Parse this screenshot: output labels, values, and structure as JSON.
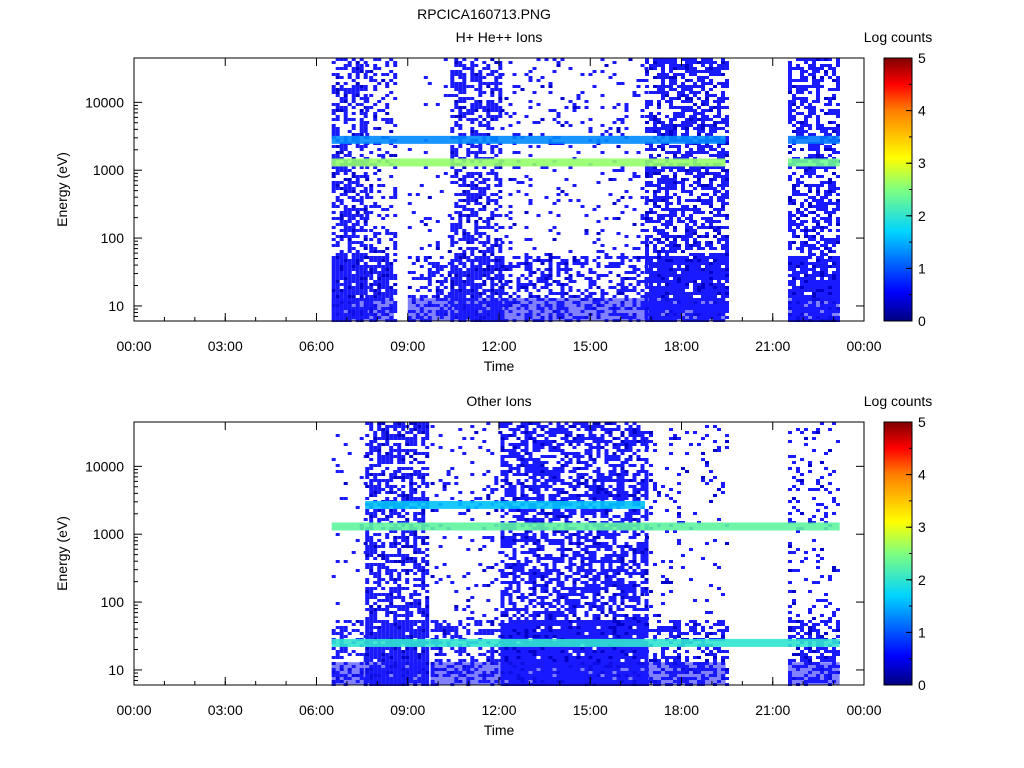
{
  "page": {
    "title": "RPCICA160713.PNG"
  },
  "colorbar": {
    "label": "Log counts",
    "min": 0,
    "max": 5,
    "ticks": [
      "0",
      "1",
      "2",
      "3",
      "4",
      "5"
    ]
  },
  "x_ticks": [
    "00:00",
    "03:00",
    "06:00",
    "09:00",
    "12:00",
    "15:00",
    "18:00",
    "21:00",
    "00:00"
  ],
  "y_ticks": [
    "10",
    "100",
    "1000",
    "10000"
  ],
  "chart_data": [
    {
      "type": "heatmap",
      "title": "H+ He++ Ions",
      "xlabel": "Time",
      "ylabel": "Energy (eV)",
      "x_range_hours": [
        0,
        24
      ],
      "y_range_eV": [
        6,
        45000
      ],
      "y_scale": "log",
      "colorbar_label": "Log counts",
      "colorbar_range": [
        0,
        5
      ],
      "data_intervals_hours": [
        [
          6.5,
          7.6
        ],
        [
          7.6,
          8.55
        ],
        [
          9.0,
          10.4
        ],
        [
          10.4,
          12.05
        ],
        [
          12.05,
          16.8
        ],
        [
          16.8,
          19.45
        ],
        [
          21.5,
          23.2
        ]
      ],
      "bands": [
        {
          "energy_eV": 1300,
          "log_counts": 2.6,
          "from_hours": 6.5,
          "to_hours": 19.45
        },
        {
          "energy_eV": 2800,
          "log_counts": 1.3,
          "from_hours": 6.5,
          "to_hours": 19.45
        },
        {
          "energy_eV": 1300,
          "log_counts": 2.4,
          "from_hours": 21.5,
          "to_hours": 23.2
        },
        {
          "energy_eV": 2800,
          "log_counts": 1.2,
          "from_hours": 21.5,
          "to_hours": 23.2
        }
      ]
    },
    {
      "type": "heatmap",
      "title": "Other Ions",
      "xlabel": "Time",
      "ylabel": "Energy (eV)",
      "x_range_hours": [
        0,
        24
      ],
      "y_range_eV": [
        6,
        45000
      ],
      "y_scale": "log",
      "colorbar_label": "Log counts",
      "colorbar_range": [
        0,
        5
      ],
      "data_intervals_hours": [
        [
          6.5,
          7.6
        ],
        [
          7.6,
          9.6
        ],
        [
          9.75,
          10.4
        ],
        [
          10.4,
          12.05
        ],
        [
          12.05,
          16.8
        ],
        [
          16.8,
          19.45
        ],
        [
          21.5,
          23.2
        ]
      ],
      "bands": [
        {
          "energy_eV": 1300,
          "log_counts": 2.3,
          "from_hours": 6.5,
          "to_hours": 23.2
        },
        {
          "energy_eV": 2700,
          "log_counts": 1.6,
          "from_hours": 7.6,
          "to_hours": 16.8
        },
        {
          "energy_eV": 25,
          "log_counts": 2.0,
          "from_hours": 6.5,
          "to_hours": 23.2
        }
      ]
    }
  ]
}
